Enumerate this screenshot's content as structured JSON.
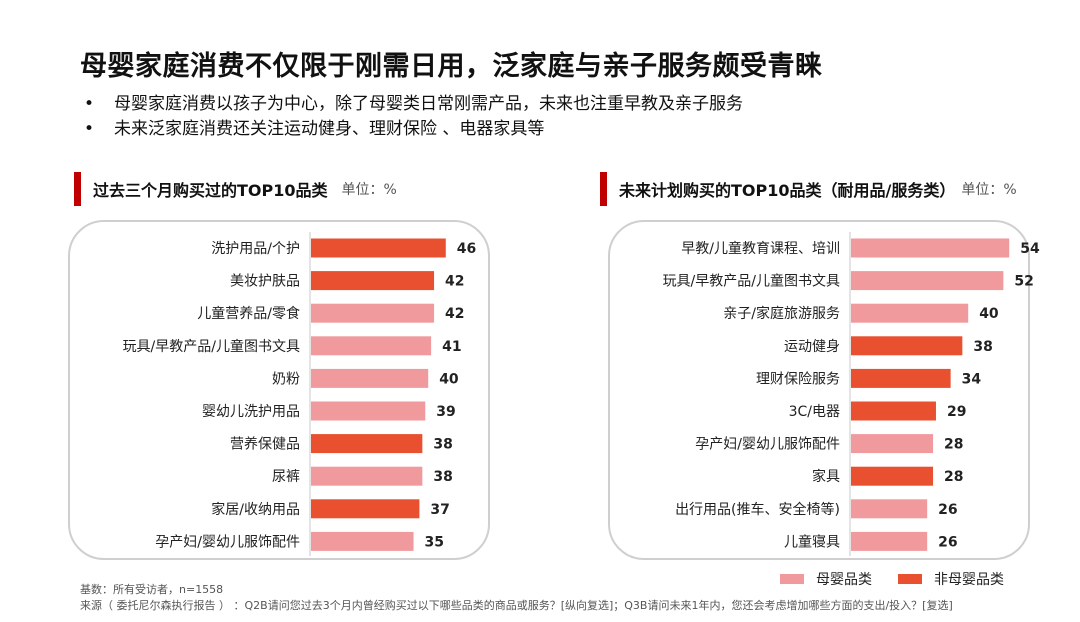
{
  "title": "母婴家庭消费不仅限于刚需日用，泛家庭与亲子服务颇受青睐",
  "bullets": [
    "母婴家庭消费以孩子为中心，除了母婴类日常刚需产品，未来也注重早教及亲子服务",
    "未来泛家庭消费还关注运动健身、理财保险 、电器家具等"
  ],
  "colors": {
    "muying": "#f19a9e",
    "fei_muying": "#e8502f",
    "accent": "#c00000"
  },
  "legend": [
    {
      "label": "母婴品类",
      "key": "muying"
    },
    {
      "label": "非母婴品类",
      "key": "fei_muying"
    }
  ],
  "footnote": {
    "base": "基数：所有受访者，n=1558",
    "source": "来源（ 委托尼尔森执行报告 ） ：Q2B请问您过去3个月内曾经购买过以下哪些品类的商品或服务？[纵向复选]；Q3B请问未来1年内，您还会考虑增加哪些方面的支出/投入？[复选]"
  },
  "chart_data": [
    {
      "type": "bar",
      "orientation": "horizontal",
      "title": "过去三个月购买过的TOP10品类",
      "unit": "单位：%",
      "categories": [
        "洗护用品/个护",
        "美妆护肤品",
        "儿童营养品/零食",
        "玩具/早教产品/儿童图书文具",
        "奶粉",
        "婴幼儿洗护用品",
        "营养保健品",
        "尿裤",
        "家居/收纳用品",
        "孕产妇/婴幼儿服饰配件"
      ],
      "values": [
        46,
        42,
        42,
        41,
        40,
        39,
        38,
        38,
        37,
        35
      ],
      "groups": [
        "fei_muying",
        "fei_muying",
        "muying",
        "muying",
        "muying",
        "muying",
        "fei_muying",
        "muying",
        "fei_muying",
        "muying"
      ],
      "xlim": [
        0,
        100
      ]
    },
    {
      "type": "bar",
      "orientation": "horizontal",
      "title": "未来计划购买的TOP10品类（耐用品/服务类）",
      "unit": "单位：%",
      "categories": [
        "早教/儿童教育课程、培训",
        "玩具/早教产品/儿童图书文具",
        "亲子/家庭旅游服务",
        "运动健身",
        "理财保险服务",
        "3C/电器",
        "孕产妇/婴幼儿服饰配件",
        "家具",
        "出行用品(推车、安全椅等)",
        "儿童寝具"
      ],
      "values": [
        54,
        52,
        40,
        38,
        34,
        29,
        28,
        28,
        26,
        26
      ],
      "groups": [
        "muying",
        "muying",
        "muying",
        "fei_muying",
        "fei_muying",
        "fei_muying",
        "muying",
        "fei_muying",
        "muying",
        "muying"
      ],
      "xlim": [
        0,
        100
      ]
    }
  ]
}
